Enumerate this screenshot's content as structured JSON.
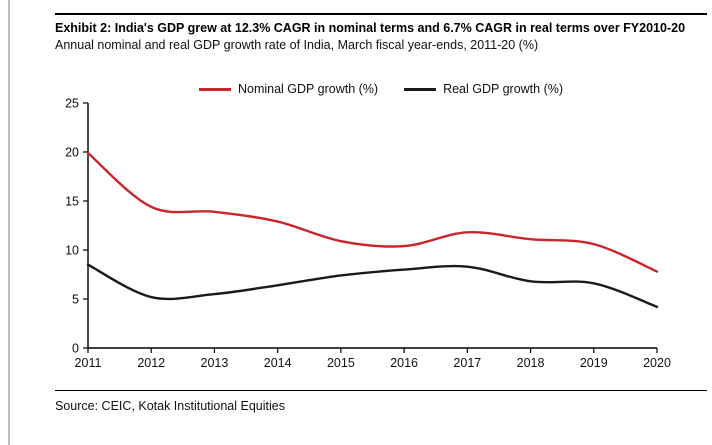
{
  "header": {
    "title": "Exhibit 2: India's GDP grew at 12.3% CAGR in nominal terms and 6.7% CAGR in real terms over FY2010-20",
    "subtitle": "Annual nominal and real GDP growth rate of India, March fiscal year-ends, 2011-20 (%)"
  },
  "footer": {
    "source": "Source: CEIC, Kotak Institutional Equities"
  },
  "chart_data": {
    "type": "line",
    "title": "Annual nominal and real GDP growth rate of India, March fiscal year-ends, 2011-20 (%)",
    "categories": [
      "2011",
      "2012",
      "2013",
      "2014",
      "2015",
      "2016",
      "2017",
      "2018",
      "2019",
      "2020"
    ],
    "series": [
      {
        "name": "Nominal GDP growth (%)",
        "color": "#c9252b",
        "values": [
          19.9,
          14.4,
          13.9,
          12.9,
          10.9,
          10.4,
          11.8,
          11.1,
          10.6,
          7.8
        ]
      },
      {
        "name": "Real GDP growth (%)",
        "color": "#1a1a1a",
        "values": [
          8.5,
          5.2,
          5.5,
          6.4,
          7.4,
          8.0,
          8.3,
          6.8,
          6.6,
          4.2
        ]
      }
    ],
    "xlabel": "",
    "ylabel": "",
    "ylim": [
      0,
      25
    ],
    "ytick_step": 5,
    "grid": false,
    "legend_position": "top"
  }
}
